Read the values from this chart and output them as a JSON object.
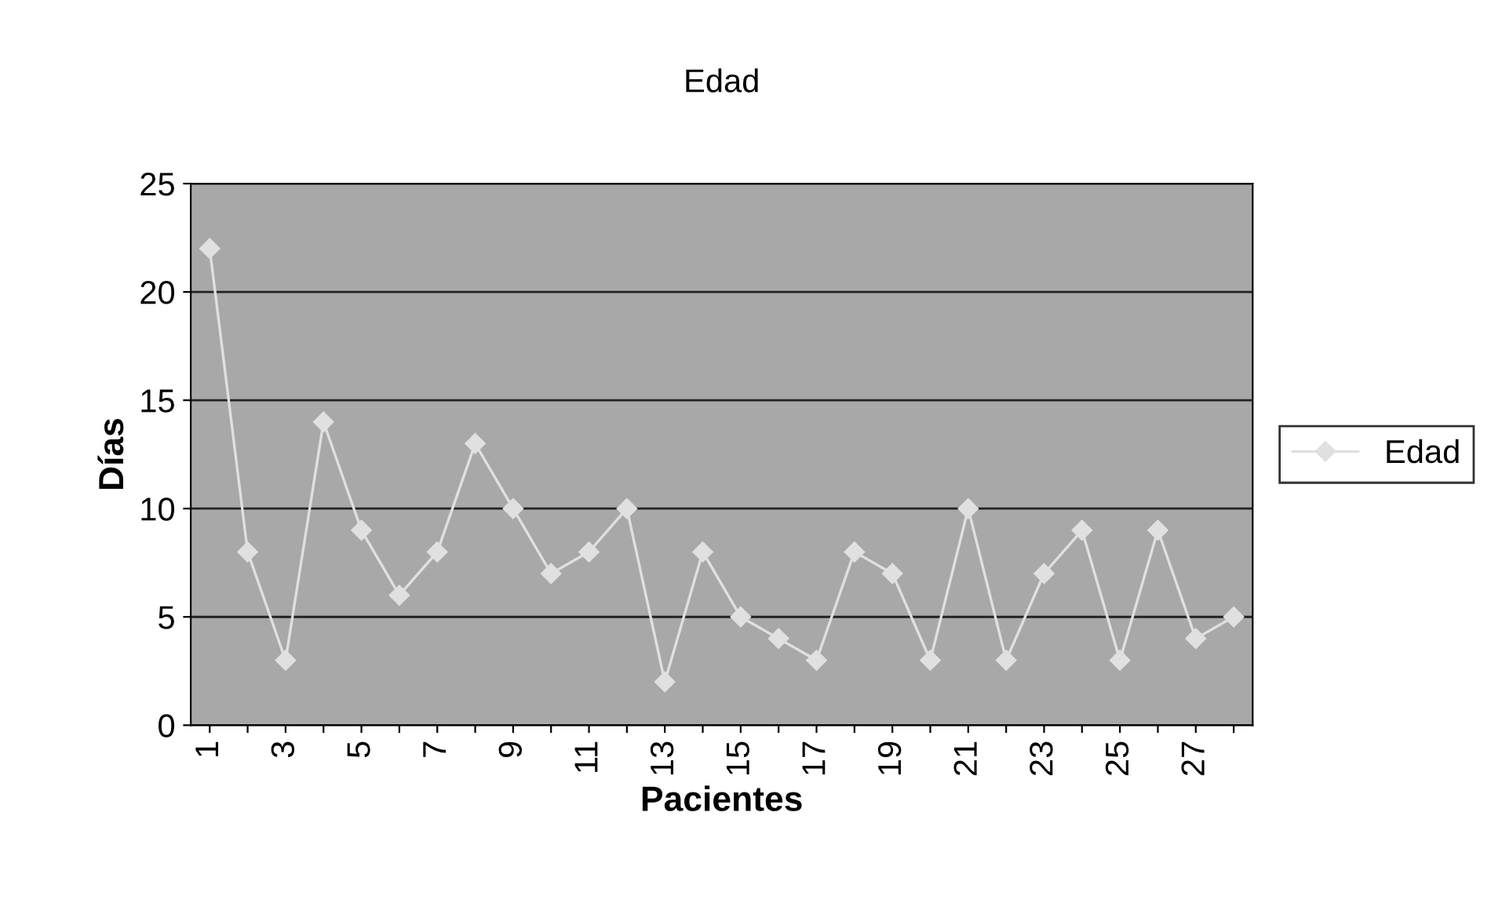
{
  "chart_data": {
    "type": "line",
    "title": "Edad",
    "xlabel": "Pacientes",
    "ylabel": "Días",
    "categories": [
      "1",
      null,
      "3",
      null,
      "5",
      null,
      "7",
      null,
      "9",
      null,
      "11",
      null,
      "13",
      null,
      "15",
      null,
      "17",
      null,
      "19",
      null,
      "21",
      null,
      "23",
      null,
      "25",
      null,
      "27",
      null
    ],
    "series": [
      {
        "name": "Edad",
        "color": "#e0e0e0",
        "values": [
          22,
          8,
          3,
          14,
          9,
          6,
          8,
          13,
          10,
          7,
          8,
          10,
          2,
          8,
          5,
          4,
          3,
          8,
          7,
          3,
          10,
          3,
          7,
          9,
          3,
          9,
          4,
          5
        ]
      }
    ],
    "ylim": [
      0,
      25
    ],
    "yticks": [
      0,
      5,
      10,
      15,
      20,
      25
    ],
    "grid": "y",
    "legend": "right",
    "marker": "diamond",
    "line_style": "solid"
  }
}
